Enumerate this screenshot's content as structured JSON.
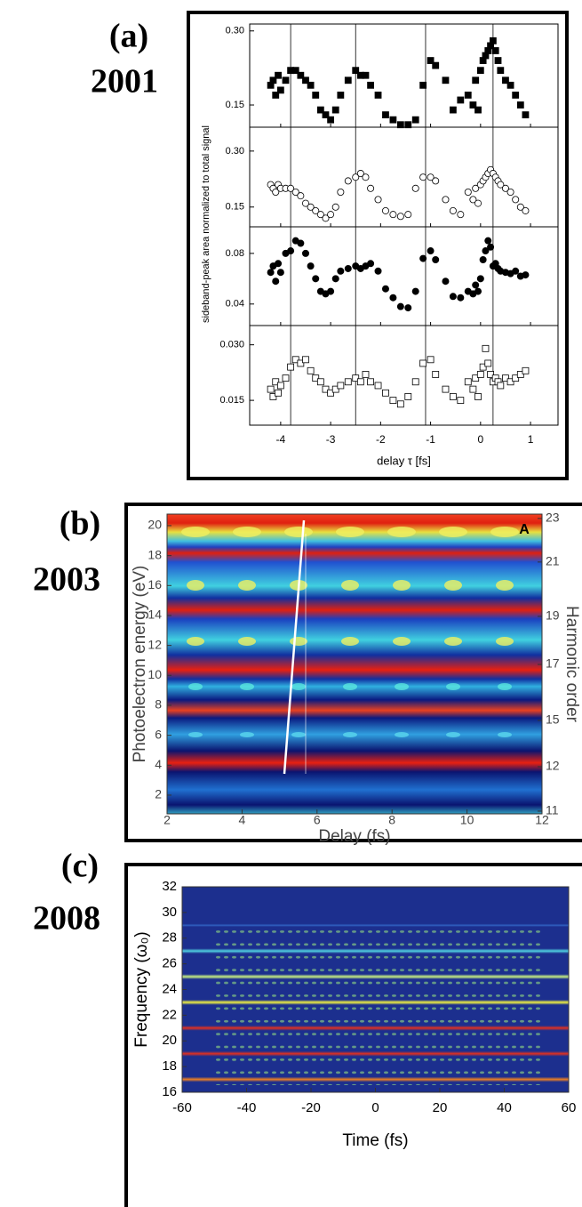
{
  "panels": [
    {
      "label": "(a)",
      "year": "2001"
    },
    {
      "label": "(b)",
      "year": "2003"
    },
    {
      "label": "(c)",
      "year": "2008"
    }
  ],
  "chart_data": [
    {
      "type": "scatter",
      "xlabel": "delay τ [fs]",
      "ylabel": "sideband-peak area normalized to total signal",
      "xlim": [
        -4.62,
        1.55
      ],
      "xticks": [
        -4,
        -3,
        -2,
        -1,
        0,
        1
      ],
      "vlines": [
        -3.8,
        -2.5,
        -1.1,
        0.25
      ],
      "subplots": [
        {
          "marker": "filled-square",
          "color": "#000000",
          "ylim": [
            0.105,
            0.314
          ],
          "yticks": [
            0.15,
            {
              "value": 0.3,
              "label": "0.30"
            }
          ],
          "x": [
            -4.2,
            -4.15,
            -4.1,
            -4.05,
            -4.0,
            -3.9,
            -3.8,
            -3.7,
            -3.6,
            -3.5,
            -3.4,
            -3.3,
            -3.2,
            -3.1,
            -3.0,
            -2.9,
            -2.8,
            -2.65,
            -2.5,
            -2.4,
            -2.3,
            -2.2,
            -2.05,
            -1.9,
            -1.75,
            -1.6,
            -1.45,
            -1.3,
            -1.15,
            -1.0,
            -0.9,
            -0.7,
            -0.55,
            -0.4,
            -0.25,
            -0.15,
            -0.1,
            -0.05,
            0.0,
            0.05,
            0.1,
            0.15,
            0.2,
            0.25,
            0.3,
            0.35,
            0.4,
            0.5,
            0.6,
            0.7,
            0.8,
            0.9
          ],
          "y": [
            0.19,
            0.2,
            0.17,
            0.21,
            0.18,
            0.2,
            0.22,
            0.22,
            0.21,
            0.2,
            0.19,
            0.17,
            0.14,
            0.13,
            0.12,
            0.14,
            0.17,
            0.2,
            0.22,
            0.21,
            0.21,
            0.19,
            0.17,
            0.13,
            0.12,
            0.11,
            0.11,
            0.12,
            0.19,
            0.24,
            0.23,
            0.2,
            0.14,
            0.16,
            0.17,
            0.15,
            0.2,
            0.14,
            0.22,
            0.24,
            0.25,
            0.26,
            0.27,
            0.28,
            0.26,
            0.24,
            0.22,
            0.2,
            0.19,
            0.17,
            0.15,
            0.13
          ]
        },
        {
          "marker": "open-circle",
          "color": "#000000",
          "ylim": [
            0.097,
            0.364
          ],
          "yticks": [
            0.15,
            {
              "value": 0.3,
              "label": "0.30"
            }
          ],
          "x": [
            -4.2,
            -4.15,
            -4.1,
            -4.05,
            -4.0,
            -3.9,
            -3.8,
            -3.7,
            -3.6,
            -3.5,
            -3.4,
            -3.3,
            -3.2,
            -3.1,
            -3.0,
            -2.9,
            -2.8,
            -2.65,
            -2.5,
            -2.4,
            -2.3,
            -2.2,
            -2.05,
            -1.9,
            -1.75,
            -1.6,
            -1.45,
            -1.3,
            -1.15,
            -1.0,
            -0.9,
            -0.7,
            -0.55,
            -0.4,
            -0.25,
            -0.15,
            -0.1,
            -0.05,
            0.0,
            0.05,
            0.1,
            0.15,
            0.2,
            0.25,
            0.3,
            0.35,
            0.4,
            0.5,
            0.6,
            0.7,
            0.8,
            0.9
          ],
          "y": [
            0.21,
            0.2,
            0.19,
            0.21,
            0.2,
            0.2,
            0.2,
            0.19,
            0.18,
            0.16,
            0.15,
            0.14,
            0.13,
            0.12,
            0.13,
            0.15,
            0.19,
            0.22,
            0.23,
            0.24,
            0.23,
            0.2,
            0.17,
            0.14,
            0.13,
            0.125,
            0.13,
            0.2,
            0.23,
            0.23,
            0.22,
            0.17,
            0.14,
            0.13,
            0.19,
            0.17,
            0.2,
            0.16,
            0.21,
            0.22,
            0.23,
            0.24,
            0.25,
            0.24,
            0.23,
            0.22,
            0.21,
            0.2,
            0.19,
            0.17,
            0.15,
            0.14
          ]
        },
        {
          "marker": "filled-circle",
          "color": "#000000",
          "ylim": [
            0.023,
            0.101
          ],
          "yticks": [
            0.04,
            0.08
          ],
          "x": [
            -4.2,
            -4.15,
            -4.1,
            -4.05,
            -4.0,
            -3.9,
            -3.8,
            -3.7,
            -3.6,
            -3.5,
            -3.4,
            -3.3,
            -3.2,
            -3.1,
            -3.0,
            -2.9,
            -2.8,
            -2.65,
            -2.5,
            -2.4,
            -2.3,
            -2.2,
            -2.05,
            -1.9,
            -1.75,
            -1.6,
            -1.45,
            -1.3,
            -1.15,
            -1.0,
            -0.9,
            -0.7,
            -0.55,
            -0.4,
            -0.25,
            -0.15,
            -0.1,
            -0.05,
            0.0,
            0.05,
            0.1,
            0.15,
            0.2,
            0.25,
            0.3,
            0.35,
            0.4,
            0.5,
            0.6,
            0.7,
            0.8,
            0.9
          ],
          "y": [
            0.065,
            0.07,
            0.058,
            0.072,
            0.065,
            0.08,
            0.082,
            0.09,
            0.088,
            0.08,
            0.07,
            0.06,
            0.05,
            0.048,
            0.05,
            0.06,
            0.066,
            0.068,
            0.07,
            0.068,
            0.07,
            0.072,
            0.066,
            0.052,
            0.045,
            0.038,
            0.037,
            0.05,
            0.076,
            0.082,
            0.075,
            0.058,
            0.046,
            0.045,
            0.05,
            0.048,
            0.055,
            0.05,
            0.06,
            0.075,
            0.082,
            0.09,
            0.085,
            0.07,
            0.072,
            0.068,
            0.066,
            0.065,
            0.064,
            0.066,
            0.062,
            0.063
          ]
        },
        {
          "marker": "open-square",
          "color": "#000000",
          "ylim": [
            0.0083,
            0.0352
          ],
          "yticks": [
            0.015,
            {
              "value": 0.03,
              "label": "0.030"
            }
          ],
          "x": [
            -4.2,
            -4.15,
            -4.1,
            -4.05,
            -4.0,
            -3.9,
            -3.8,
            -3.7,
            -3.6,
            -3.5,
            -3.4,
            -3.3,
            -3.2,
            -3.1,
            -3.0,
            -2.9,
            -2.8,
            -2.65,
            -2.5,
            -2.4,
            -2.3,
            -2.2,
            -2.05,
            -1.9,
            -1.75,
            -1.6,
            -1.45,
            -1.3,
            -1.15,
            -1.0,
            -0.9,
            -0.7,
            -0.55,
            -0.4,
            -0.25,
            -0.15,
            -0.1,
            -0.05,
            0.0,
            0.05,
            0.1,
            0.15,
            0.2,
            0.25,
            0.3,
            0.35,
            0.4,
            0.5,
            0.6,
            0.7,
            0.8,
            0.9
          ],
          "y": [
            0.018,
            0.016,
            0.02,
            0.017,
            0.019,
            0.021,
            0.024,
            0.026,
            0.025,
            0.026,
            0.023,
            0.021,
            0.02,
            0.018,
            0.017,
            0.018,
            0.019,
            0.02,
            0.021,
            0.02,
            0.022,
            0.02,
            0.019,
            0.017,
            0.015,
            0.014,
            0.016,
            0.02,
            0.025,
            0.026,
            0.022,
            0.018,
            0.016,
            0.015,
            0.02,
            0.018,
            0.021,
            0.016,
            0.022,
            0.024,
            0.029,
            0.025,
            0.022,
            0.02,
            0.021,
            0.02,
            0.019,
            0.021,
            0.02,
            0.021,
            0.022,
            0.023
          ]
        }
      ]
    },
    {
      "type": "heatmap",
      "xlabel": "Delay (fs)",
      "ylabel": "Photoelectron energy (eV)",
      "y2label": "Harmonic order",
      "annotation": "A",
      "xlim": [
        2,
        12
      ],
      "xticks": [
        2,
        4,
        6,
        8,
        10,
        12
      ],
      "ylim": [
        0.75,
        20.77
      ],
      "yticks": [
        2,
        4,
        6,
        8,
        10,
        12,
        14,
        16,
        18,
        20
      ],
      "y2ticks": [
        {
          "value": 23,
          "energy": 20.48
        },
        {
          "value": 21,
          "energy": 17.57
        },
        {
          "value": 19,
          "energy": 13.94
        },
        {
          "value": 17,
          "energy": 10.73
        },
        {
          "value": 15,
          "energy": 6.99
        },
        {
          "value": 12,
          "energy": 3.9
        },
        {
          "value": 11,
          "energy": 0.93
        }
      ]
    },
    {
      "type": "heatmap",
      "xlabel": "Time (fs)",
      "ylabel": "Frequency (ω₀)",
      "xlim": [
        -60,
        60
      ],
      "xticks": [
        -60,
        -40,
        -20,
        0,
        20,
        40,
        60
      ],
      "ylim": [
        16,
        32
      ],
      "yticks": [
        16,
        18,
        20,
        22,
        24,
        26,
        28,
        30,
        32
      ]
    }
  ]
}
